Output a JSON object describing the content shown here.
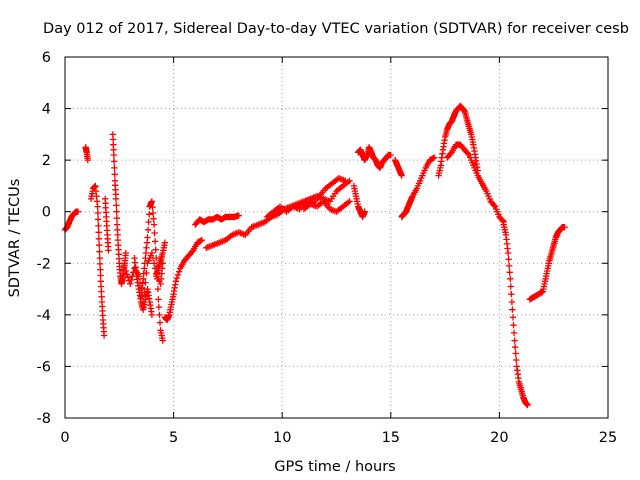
{
  "chart_data": {
    "type": "scatter",
    "title": "Day 012 of 2017, Sidereal Day-to-day VTEC variation (SDTVAR) for receiver cesb",
    "xlabel": "GPS time / hours",
    "ylabel": "SDTVAR / TECUs",
    "xlim": [
      0,
      25
    ],
    "ylim": [
      -8,
      6
    ],
    "x_ticks": [
      0,
      5,
      10,
      15,
      20,
      25
    ],
    "y_ticks": [
      -8,
      -6,
      -4,
      -2,
      0,
      2,
      4,
      6
    ],
    "x_tick_labels": [
      "0",
      "5",
      "10",
      "15",
      "20",
      "25"
    ],
    "y_tick_labels": [
      "-8",
      "-6",
      "-4",
      "-2",
      "0",
      "2",
      "4",
      "6"
    ],
    "grid": true,
    "marker": "plus",
    "marker_color": "#ff0000",
    "series": [
      {
        "color": "#ff0000",
        "segments": [
          {
            "x": [
              0.0,
              0.1,
              0.2,
              0.3,
              0.4,
              0.5,
              0.6
            ],
            "y": [
              -0.7,
              -0.6,
              -0.4,
              -0.2,
              -0.1,
              0.0,
              0.0
            ]
          },
          {
            "x": [
              0.95,
              1.0,
              1.05
            ],
            "y": [
              2.5,
              2.3,
              2.0
            ]
          },
          {
            "x": [
              1.2,
              1.3,
              1.4,
              1.5,
              1.55,
              1.6,
              1.65,
              1.7,
              1.75,
              1.8
            ],
            "y": [
              0.5,
              0.9,
              1.0,
              0.2,
              -0.8,
              -1.8,
              -2.7,
              -3.5,
              -4.2,
              -4.8
            ]
          },
          {
            "x": [
              1.85,
              1.9,
              1.95,
              2.0
            ],
            "y": [
              0.5,
              -0.2,
              -0.9,
              -1.5
            ]
          },
          {
            "x": [
              2.2,
              2.25,
              2.3,
              2.35,
              2.4,
              2.45,
              2.5,
              2.55,
              2.6,
              2.65,
              2.7,
              2.75,
              2.8
            ],
            "y": [
              3.0,
              2.2,
              1.2,
              0.5,
              -0.5,
              -1.3,
              -2.0,
              -2.5,
              -2.8,
              -2.6,
              -2.3,
              -2.0,
              -1.6
            ]
          },
          {
            "x": [
              2.8,
              3.0,
              3.2,
              3.4,
              3.6,
              3.8,
              4.0,
              4.2,
              4.4,
              4.5
            ],
            "y": [
              -2.3,
              -2.8,
              -2.2,
              -2.5,
              -3.5,
              -2.0,
              -1.6,
              -2.4,
              -2.8,
              -2.0
            ]
          },
          {
            "x": [
              3.5,
              3.6,
              3.7,
              3.8,
              3.9,
              4.0,
              4.1,
              4.2,
              4.3,
              4.4,
              4.5
            ],
            "y": [
              -3.3,
              -2.6,
              -1.8,
              -1.0,
              0.2,
              0.4,
              -0.5,
              -1.8,
              -3.4,
              -4.6,
              -5.0
            ]
          },
          {
            "x": [
              4.2,
              4.3,
              4.4,
              4.5,
              4.6
            ],
            "y": [
              -2.5,
              -2.2,
              -1.9,
              -1.6,
              -1.2
            ]
          },
          {
            "x": [
              3.2,
              3.3,
              3.4,
              3.5,
              3.6,
              3.7,
              3.8,
              3.9,
              4.0
            ],
            "y": [
              -1.8,
              -2.5,
              -3.0,
              -3.5,
              -3.8,
              -3.4,
              -3.0,
              -3.5,
              -4.0
            ]
          },
          {
            "x": [
              4.6,
              4.7,
              4.8,
              4.9,
              5.0,
              5.1,
              5.3,
              5.5,
              5.7,
              5.9,
              6.1,
              6.3
            ],
            "y": [
              -4.1,
              -4.2,
              -4.0,
              -3.6,
              -3.2,
              -2.7,
              -2.2,
              -1.9,
              -1.7,
              -1.5,
              -1.2,
              -1.1
            ]
          },
          {
            "x": [
              6.0,
              6.2,
              6.4,
              6.6,
              6.8,
              7.0,
              7.2,
              7.4,
              7.6,
              7.8,
              8.0
            ],
            "y": [
              -0.5,
              -0.3,
              -0.4,
              -0.3,
              -0.3,
              -0.2,
              -0.3,
              -0.2,
              -0.2,
              -0.2,
              -0.15
            ]
          },
          {
            "x": [
              6.5,
              6.8,
              7.1,
              7.4,
              7.7,
              8.0,
              8.3,
              8.6,
              8.9,
              9.2,
              9.5,
              9.8,
              10.1,
              10.4,
              10.7,
              11.0,
              11.3,
              11.6,
              11.9,
              12.2,
              12.5,
              12.8,
              13.1
            ],
            "y": [
              -1.4,
              -1.3,
              -1.2,
              -1.1,
              -0.9,
              -0.8,
              -0.9,
              -0.6,
              -0.5,
              -0.4,
              -0.2,
              -0.1,
              0.1,
              0.2,
              0.3,
              0.4,
              0.5,
              0.6,
              0.5,
              0.4,
              0.8,
              1.0,
              1.2
            ]
          },
          {
            "x": [
              9.3,
              9.6,
              9.9,
              10.2,
              10.5,
              10.8,
              11.1,
              11.4,
              11.7,
              12.0,
              12.3,
              12.6,
              12.9
            ],
            "y": [
              -0.2,
              0.0,
              0.2,
              0.0,
              0.2,
              0.1,
              0.4,
              0.3,
              0.6,
              0.9,
              1.1,
              1.3,
              1.2
            ]
          },
          {
            "x": [
              11.0,
              11.3,
              11.6,
              11.9,
              12.2,
              12.5,
              12.8,
              13.1
            ],
            "y": [
              0.1,
              0.3,
              0.2,
              0.4,
              0.1,
              0.0,
              0.2,
              0.4
            ]
          },
          {
            "x": [
              13.5,
              13.6,
              13.7,
              13.8,
              13.9,
              14.0,
              14.1,
              14.2,
              14.3,
              14.4,
              14.5,
              14.6,
              14.7,
              14.8,
              14.9,
              15.0
            ],
            "y": [
              2.3,
              2.4,
              2.2,
              2.0,
              2.2,
              2.5,
              2.3,
              2.1,
              2.0,
              1.8,
              1.7,
              1.9,
              2.0,
              2.1,
              2.2,
              2.2
            ]
          },
          {
            "x": [
              13.3,
              13.4,
              13.5,
              13.6,
              13.7,
              13.8
            ],
            "y": [
              1.0,
              0.6,
              0.2,
              0.0,
              -0.2,
              0.0
            ]
          },
          {
            "x": [
              15.2,
              15.3,
              15.4,
              15.5
            ],
            "y": [
              2.0,
              1.8,
              1.6,
              1.4
            ]
          },
          {
            "x": [
              15.5,
              15.6,
              15.7,
              15.8,
              15.9,
              16.0,
              16.2,
              16.4,
              16.6,
              16.8,
              17.0
            ],
            "y": [
              -0.2,
              -0.1,
              0.0,
              0.2,
              0.4,
              0.6,
              0.9,
              1.3,
              1.7,
              2.0,
              2.1
            ]
          },
          {
            "x": [
              17.2,
              17.3,
              17.4,
              17.5,
              17.6,
              17.7,
              17.8,
              17.9,
              18.0,
              18.1,
              18.2,
              18.3,
              18.4,
              18.5,
              18.6,
              18.7,
              18.8,
              18.9,
              19.0
            ],
            "y": [
              1.4,
              1.8,
              2.4,
              2.9,
              3.2,
              3.4,
              3.5,
              3.7,
              3.9,
              4.0,
              4.1,
              4.0,
              3.9,
              3.6,
              3.3,
              3.0,
              2.6,
              2.1,
              1.6
            ]
          },
          {
            "x": [
              17.6,
              17.8,
              18.0,
              18.2,
              18.4,
              18.6,
              18.8,
              19.0,
              19.2,
              19.4,
              19.6,
              19.8,
              20.0,
              20.2
            ],
            "y": [
              2.1,
              2.3,
              2.6,
              2.6,
              2.4,
              2.2,
              1.8,
              1.4,
              1.1,
              0.8,
              0.4,
              0.2,
              -0.2,
              -0.4
            ]
          },
          {
            "x": [
              20.2,
              20.3,
              20.4,
              20.5,
              20.6,
              20.7,
              20.8,
              20.9,
              21.0,
              21.1,
              21.2,
              21.3
            ],
            "y": [
              -0.5,
              -0.9,
              -1.6,
              -2.6,
              -3.8,
              -5.0,
              -6.0,
              -6.6,
              -6.9,
              -7.2,
              -7.4,
              -7.5
            ]
          },
          {
            "x": [
              21.4,
              21.6,
              21.8,
              22.0,
              22.1,
              22.2,
              22.3,
              22.4,
              22.5,
              22.6,
              22.7,
              22.8,
              22.9,
              23.0
            ],
            "y": [
              -3.4,
              -3.3,
              -3.2,
              -3.1,
              -2.7,
              -2.3,
              -1.9,
              -1.6,
              -1.3,
              -1.0,
              -0.8,
              -0.7,
              -0.6,
              -0.6
            ]
          }
        ]
      }
    ]
  }
}
